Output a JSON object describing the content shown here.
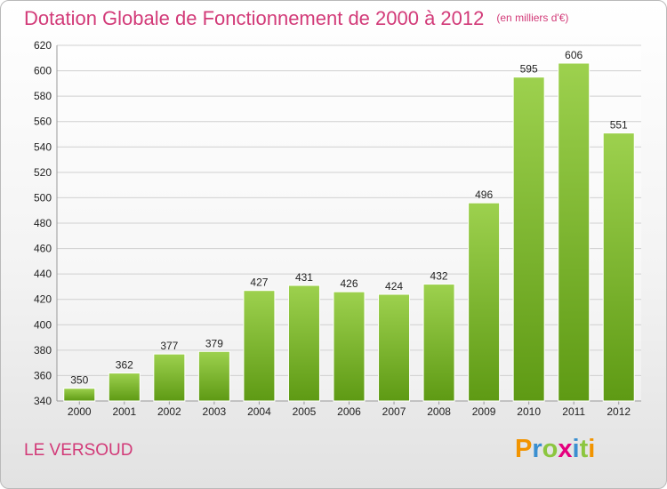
{
  "header": {
    "title": "Dotation Globale de Fonctionnement de 2000 à 2012",
    "unit": "(en milliers d'€)"
  },
  "footer": {
    "commune": "LE VERSOUD",
    "logo": [
      "P",
      "r",
      "o",
      "x",
      "i",
      "t",
      "i"
    ]
  },
  "colors": {
    "accent": "#d23a78",
    "bar_top": "#9dd14e",
    "bar_bottom": "#5e9a14",
    "logo": [
      "#f29400",
      "#3a8fd0",
      "#8cc63f",
      "#e5007e",
      "#3a8fd0",
      "#8cc63f",
      "#f29400"
    ]
  },
  "chart_data": {
    "type": "bar",
    "title": "Dotation Globale de Fonctionnement de 2000 à 2012",
    "subtitle": "(en milliers d'€)",
    "categories": [
      "2000",
      "2001",
      "2002",
      "2003",
      "2004",
      "2005",
      "2006",
      "2007",
      "2008",
      "2009",
      "2010",
      "2011",
      "2012"
    ],
    "values": [
      350,
      362,
      377,
      379,
      427,
      431,
      426,
      424,
      432,
      496,
      595,
      606,
      551
    ],
    "ylim": [
      340,
      620
    ],
    "yticks": [
      340,
      360,
      380,
      400,
      420,
      440,
      460,
      480,
      500,
      520,
      540,
      560,
      580,
      600,
      620
    ],
    "grid": true,
    "legend": "none"
  }
}
